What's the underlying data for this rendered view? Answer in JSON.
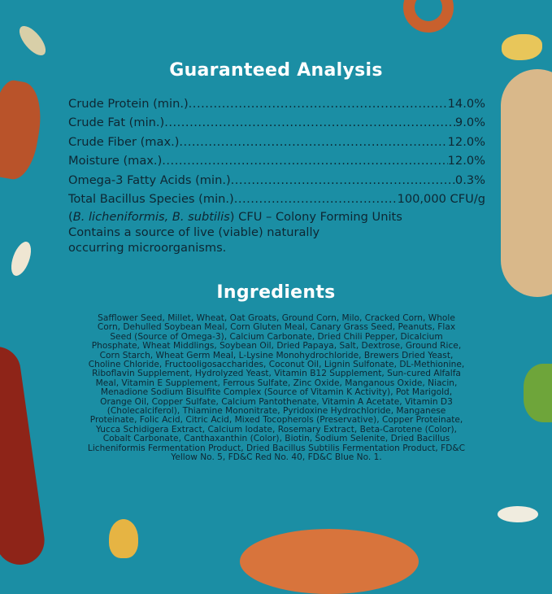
{
  "colors": {
    "background": "#1b8ea4",
    "heading": "#ffffff",
    "text": "#0e2733"
  },
  "guaranteed_analysis": {
    "title": "Guaranteed Analysis",
    "rows": [
      {
        "label": "Crude Protein (min.)",
        "value": "14.0%"
      },
      {
        "label": "Crude Fat (min.)",
        "value": "9.0%"
      },
      {
        "label": "Crude Fiber (max.)",
        "value": "12.0%"
      },
      {
        "label": "Moisture (max.)",
        "value": "12.0%"
      },
      {
        "label": "Omega-3 Fatty Acids (min.)",
        "value": "0.3%"
      },
      {
        "label": "Total Bacillus Species (min.)",
        "value": "100,000 CFU/g"
      }
    ],
    "note_species": "B. licheniformis, B. subtilis",
    "note_cfu": "CFU – Colony Forming Units",
    "note_line2": "Contains a source of live (viable) naturally",
    "note_line3": "occurring microorganisms."
  },
  "ingredients": {
    "title": "Ingredients",
    "lines": [
      "Safflower Seed, Millet, Wheat, Oat Groats, Ground Corn, Milo, Cracked Corn, Whole",
      "Corn, Dehulled Soybean Meal, Corn Gluten Meal, Canary Grass Seed, Peanuts, Flax",
      "Seed (Source of Omega-3), Calcium Carbonate, Dried Chili Pepper, Dicalcium",
      "Phosphate, Wheat Middlings, Soybean Oil, Dried Papaya, Salt, Dextrose, Ground Rice,",
      "Corn Starch, Wheat Germ Meal, L-Lysine Monohydrochloride, Brewers Dried Yeast,",
      "Choline Chloride, Fructooligosaccharides, Coconut Oil, Lignin Sulfonate, DL-Methionine,",
      "Riboflavin Supplement, Hydrolyzed Yeast, Vitamin B12 Supplement, Sun-cured Alfalfa",
      "Meal, Vitamin E Supplement, Ferrous Sulfate, Zinc Oxide, Manganous Oxide, Niacin,",
      "Menadione Sodium Bisulfite Complex (Source of Vitamin K Activity), Pot Marigold,",
      "Orange Oil, Copper Sulfate, Calcium Pantothenate, Vitamin A Acetate, Vitamin D3",
      "(Cholecalciferol), Thiamine Mononitrate, Pyridoxine Hydrochloride, Manganese",
      "Proteinate, Folic Acid, Citric Acid, Mixed Tocopherols (Preservative), Copper Proteinate,",
      "Yucca Schidigera Extract, Calcium Iodate, Rosemary Extract, Beta-Carotene (Color),",
      "Cobalt Carbonate, Canthaxanthin (Color), Biotin, Sodium Selenite, Dried Bacillus",
      "Licheniformis Fermentation Product, Dried Bacillus Subtilis Fermentation Product, FD&C",
      "Yellow No. 5, FD&C Red No. 40, FD&C Blue No. 1."
    ]
  }
}
